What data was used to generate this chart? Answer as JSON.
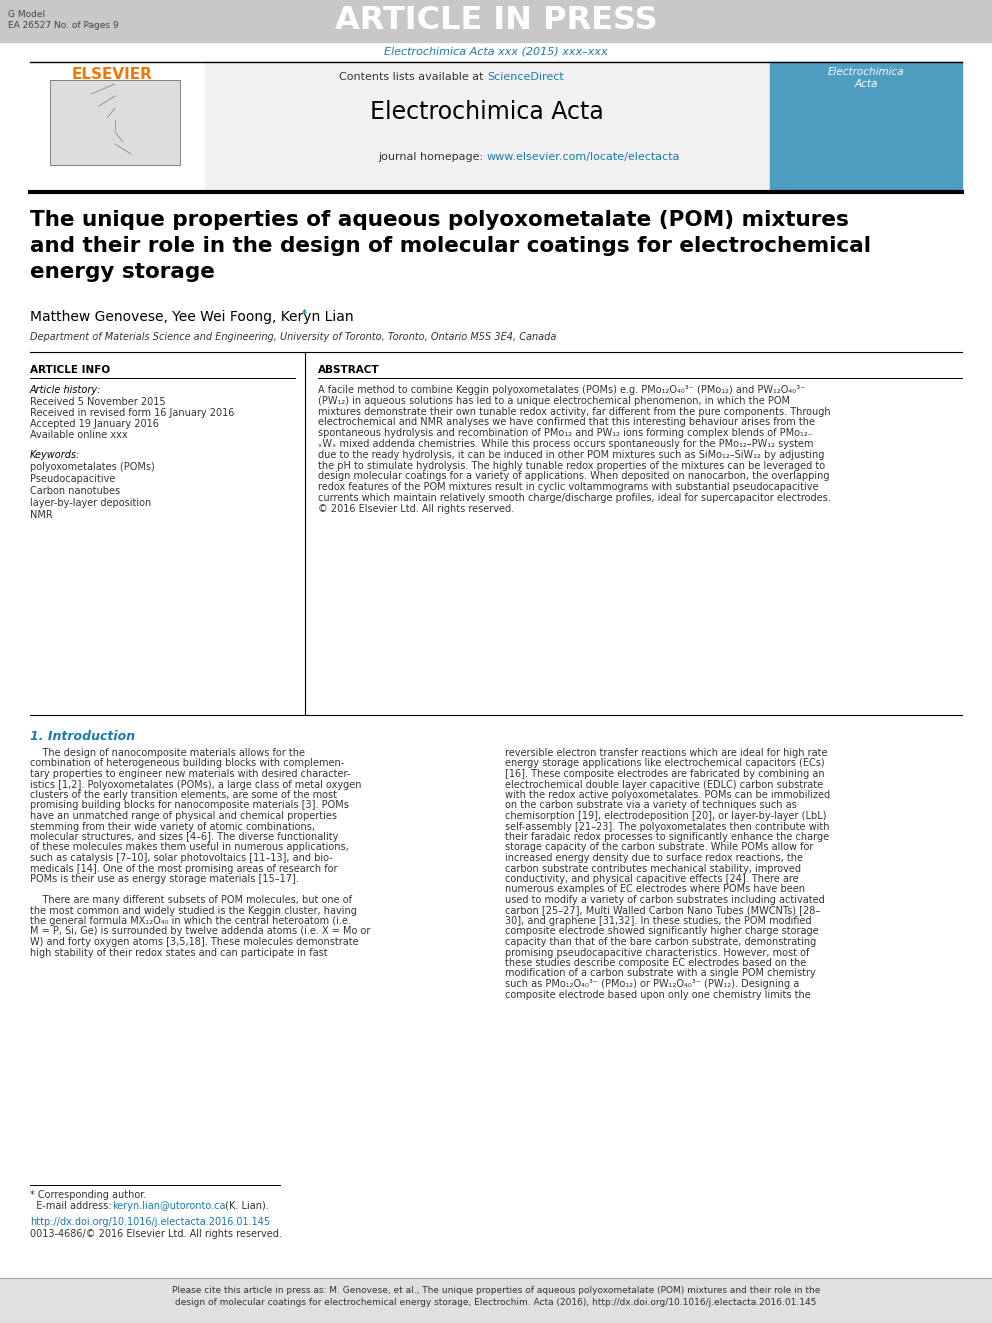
{
  "header_bg": "#c8c8c8",
  "header_text": "ARTICLE IN PRESS",
  "header_left1": "G Model",
  "header_left2": "EA 26527 No. of Pages 9",
  "journal_line": "Electrochimica Acta xxx (2015) xxx–xxx",
  "journal_line_color": "#1a7aaa",
  "contents_text": "Contents lists available at ",
  "sciencedirect_text": "ScienceDirect",
  "sciencedirect_color": "#1a7aaa",
  "journal_name": "Electrochimica Acta",
  "journal_homepage_text": "journal homepage: ",
  "journal_url": "www.elsevier.com/locate/electacta",
  "journal_url_color": "#1a7aaa",
  "elsevier_color": "#f07800",
  "title_line1": "The unique properties of aqueous polyoxometalate (POM) mixtures",
  "title_line2": "and their role in the design of molecular coatings for electrochemical",
  "title_line3": "energy storage",
  "authors": "Matthew Genovese, Yee Wei Foong, Keryn Lian",
  "affiliation": "Department of Materials Science and Engineering, University of Toronto, Toronto, Ontario M5S 3E4, Canada",
  "article_info_title": "ARTICLE INFO",
  "abstract_title": "ABSTRACT",
  "article_history_label": "Article history:",
  "received1": "Received 5 November 2015",
  "received2": "Received in revised form 16 January 2016",
  "accepted": "Accepted 19 January 2016",
  "available": "Available online xxx",
  "keywords_label": "Keywords:",
  "keywords": [
    "polyoxometalates (POMs)",
    "Pseudocapacitive",
    "Carbon nanotubes",
    "layer-by-layer deposition",
    "NMR"
  ],
  "abstract_lines": [
    "A facile method to combine Keggin polyoxometalates (POMs) e.g. PMo₁₂O₄₀³⁻ (PMo₁₂) and PW₁₂O₄₀³⁻",
    "(PW₁₂) in aqueous solutions has led to a unique electrochemical phenomenon, in which the POM",
    "mixtures demonstrate their own tunable redox activity, far different from the pure components. Through",
    "electrochemical and NMR analyses we have confirmed that this interesting behaviour arises from the",
    "spontaneous hydrolysis and recombination of PMo₁₂ and PW₁₂ ions forming complex blends of PMo₁₂₋",
    "ₓWₓ mixed addenda chemistries. While this process occurs spontaneously for the PMo₁₂–PW₁₂ system",
    "due to the ready hydrolysis, it can be induced in other POM mixtures such as SiMo₁₂–SiW₁₂ by adjusting",
    "the pH to stimulate hydrolysis. The highly tunable redox properties of the mixtures can be leveraged to",
    "design molecular coatings for a variety of applications. When deposited on nanocarbon, the overlapping",
    "redox features of the POM mixtures result in cyclic voltammograms with substantial pseudocapacitive",
    "currents which maintain relatively smooth charge/discharge profiles, ideal for supercapacitor electrodes.",
    "© 2016 Elsevier Ltd. All rights reserved."
  ],
  "intro_heading": "1. Introduction",
  "intro_text_left_lines": [
    "    The design of nanocomposite materials allows for the",
    "combination of heterogeneous building blocks with complemen-",
    "tary properties to engineer new materials with desired character-",
    "istics [1,2]. Polyoxometalates (POMs), a large class of metal oxygen",
    "clusters of the early transition elements, are some of the most",
    "promising building blocks for nanocomposite materials [3]. POMs",
    "have an unmatched range of physical and chemical properties",
    "stemming from their wide variety of atomic combinations,",
    "molecular structures, and sizes [4–6]. The diverse functionality",
    "of these molecules makes them useful in numerous applications,",
    "such as catalysis [7–10], solar photovoltaics [11–13], and bio-",
    "medicals [14]. One of the most promising areas of research for",
    "POMs is their use as energy storage materials [15–17].",
    "",
    "    There are many different subsets of POM molecules, but one of",
    "the most common and widely studied is the Keggin cluster, having",
    "the general formula MX₁₂O₄₀ in which the central heteroatom (i.e.",
    "M = P, Si, Ge) is surrounded by twelve addenda atoms (i.e. X = Mo or",
    "W) and forty oxygen atoms [3,5,18]. These molecules demonstrate",
    "high stability of their redox states and can participate in fast"
  ],
  "intro_text_right_lines": [
    "reversible electron transfer reactions which are ideal for high rate",
    "energy storage applications like electrochemical capacitors (ECs)",
    "[16]. These composite electrodes are fabricated by combining an",
    "electrochemical double layer capacitive (EDLC) carbon substrate",
    "with the redox active polyoxometalates. POMs can be immobilized",
    "on the carbon substrate via a variety of techniques such as",
    "chemisorption [19], electrodeposition [20], or layer-by-layer (LbL)",
    "self-assembly [21–23]. The polyoxometalates then contribute with",
    "their faradaic redox processes to significantly enhance the charge",
    "storage capacity of the carbon substrate. While POMs allow for",
    "increased energy density due to surface redox reactions, the",
    "carbon substrate contributes mechanical stability, improved",
    "conductivity, and physical capacitive effects [24]. There are",
    "numerous examples of EC electrodes where POMs have been",
    "used to modify a variety of carbon substrates including activated",
    "carbon [25–27], Multi Walled Carbon Nano Tubes (MWCNTs) [28–",
    "30], and graphene [31,32]. In these studies, the POM modified",
    "composite electrode showed significantly higher charge storage",
    "capacity than that of the bare carbon substrate, demonstrating",
    "promising pseudocapacitive characteristics. However, most of",
    "these studies describe composite EC electrodes based on the",
    "modification of a carbon substrate with a single POM chemistry",
    "such as PMo₁₂O₄₀³⁻ (PMo₁₂) or PW₁₂O₄₀³⁻ (PW₁₂). Designing a",
    "composite electrode based upon only one chemistry limits the"
  ],
  "footnote_star": "* Corresponding author.",
  "footnote_email_label": "  E-mail address: ",
  "footnote_email": "keryn.lian@utoronto.ca",
  "footnote_email_suffix": " (K. Lian).",
  "doi_text": "http://dx.doi.org/10.1016/j.electacta.2016.01.145",
  "doi_color": "#1a7aaa",
  "issn_text": "0013-4686/© 2016 Elsevier Ltd. All rights reserved.",
  "bottom_bar_text1": "Please cite this article in press as: M. Genovese, et al., The unique properties of aqueous polyoxometalate (POM) mixtures and their role in the",
  "bottom_bar_text2": "design of molecular coatings for electrochemical energy storage, Electrochim. Acta (2016), http://dx.doi.org/10.1016/j.electacta.2016.01.145",
  "bottom_bar_bg": "#e0e0e0",
  "bottom_bar_border": "#aaaaaa",
  "page_bg": "#ffffff",
  "separator_color": "#000000",
  "header_border_color": "#000000"
}
